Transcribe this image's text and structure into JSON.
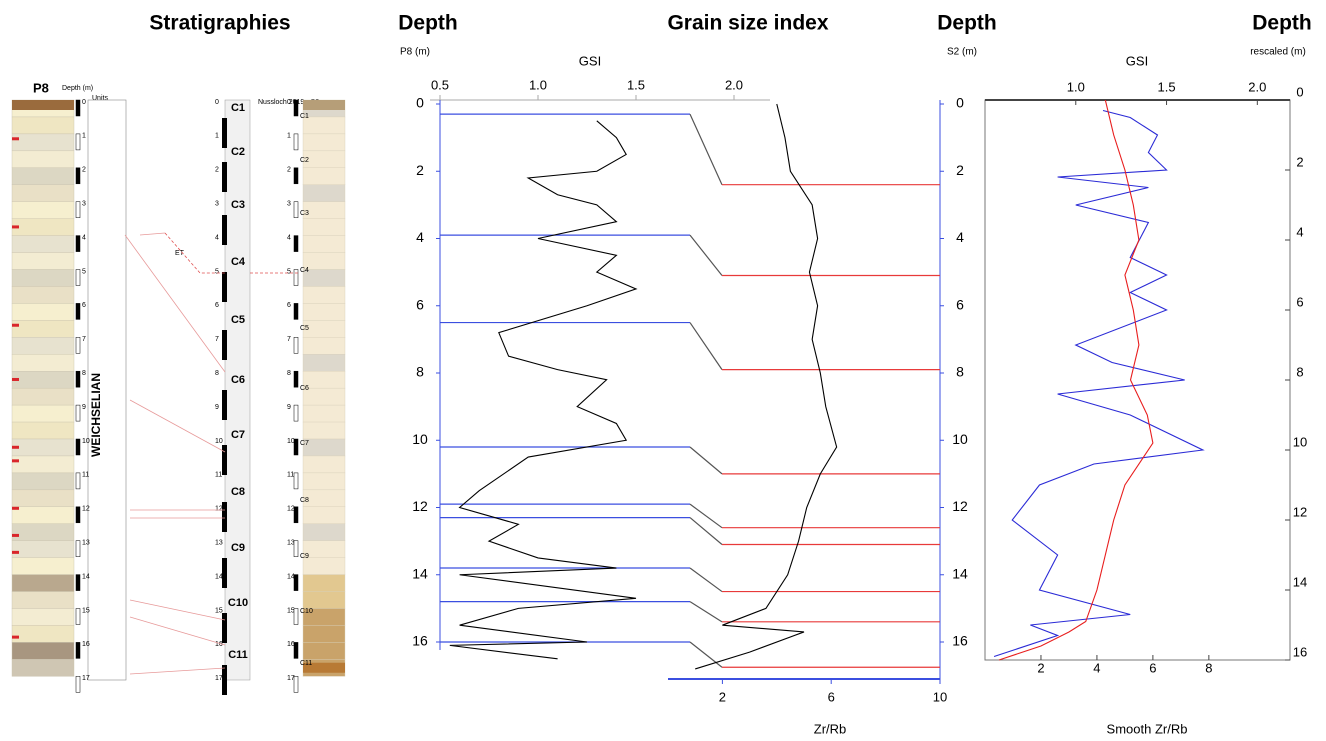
{
  "headers": [
    "Stratigraphies",
    "Depth",
    "Grain size index",
    "Depth",
    "Depth"
  ],
  "stratigraphy": {
    "p8_title": "P8",
    "depth_label": "Depth (m)",
    "units_label": "Units",
    "period": "WEICHSELIAN",
    "s2_title": "Nussloch 2019 - S2",
    "correlation_label": "ET",
    "units": [
      "C1",
      "C2",
      "C3",
      "C4",
      "C5",
      "C6",
      "C7",
      "C8",
      "C9",
      "C10",
      "C11"
    ],
    "depths": [
      0,
      1,
      2,
      3,
      4,
      5,
      6,
      7,
      8,
      9,
      10,
      11,
      12,
      13,
      14,
      15,
      16,
      17
    ]
  },
  "chart_data": [
    {
      "type": "line",
      "x_label": "GSI",
      "x2_label": "Zr/Rb",
      "y_label": "P8 (m)",
      "y2_label": "S2 (m)",
      "xlim": [
        0.5,
        2.0
      ],
      "xticks": [
        0.5,
        {
          "value": 1,
          "label": "1.0"
        },
        1.5,
        {
          "value": 2,
          "label": "2.0"
        }
      ],
      "x2lim": [
        0,
        10
      ],
      "x2ticks": [
        2,
        6,
        10
      ],
      "ylim": [
        0,
        17.1
      ],
      "yticks": [
        0,
        2,
        4,
        6,
        8,
        10,
        12,
        14,
        16
      ],
      "y2lim": [
        0,
        17.1
      ],
      "y2ticks": [
        0,
        2,
        4,
        6,
        8,
        10,
        12,
        14,
        16
      ],
      "series": [
        {
          "name": "GSI",
          "color": "#000000",
          "depth": [
            0.5,
            1,
            1.5,
            2,
            2.2,
            2.7,
            3,
            3.5,
            4,
            4.5,
            5,
            5.5,
            6,
            6.8,
            7.5,
            7.9,
            8.2,
            9,
            9.5,
            10,
            10.5,
            11.5,
            12,
            12.5,
            13,
            13.5,
            13.8,
            14,
            14.7,
            15,
            15.5,
            16,
            16.1,
            16.5
          ],
          "values": [
            1.3,
            1.4,
            1.45,
            1.3,
            0.95,
            1.1,
            1.3,
            1.4,
            1.0,
            1.4,
            1.3,
            1.5,
            1.25,
            0.8,
            0.85,
            1.1,
            1.35,
            1.2,
            1.4,
            1.45,
            0.95,
            0.7,
            0.6,
            0.9,
            0.75,
            1.0,
            1.4,
            0.6,
            1.5,
            0.9,
            0.6,
            1.25,
            0.55,
            1.1
          ]
        },
        {
          "name": "Zr/Rb",
          "color": "#000000",
          "axis": "x2",
          "depth": [
            0,
            1,
            2,
            3,
            4,
            5,
            6,
            7,
            8,
            9,
            10.2,
            11,
            12,
            13,
            14,
            15,
            15.5,
            15.7,
            16.3,
            16.8
          ],
          "values": [
            4.0,
            4.3,
            4.5,
            5.3,
            5.5,
            5.2,
            5.5,
            5.3,
            5.6,
            5.8,
            6.2,
            5.6,
            5.1,
            4.8,
            4.4,
            3.6,
            2.0,
            5.0,
            3.0,
            1.0
          ]
        }
      ],
      "tie_lines": {
        "p8_color": "#3b4fe0",
        "s2_color": "#e83a3a",
        "p8_depths": [
          0.3,
          3.9,
          6.5,
          10.2,
          11.9,
          12.3,
          13.8,
          14.8,
          16.0
        ],
        "s2_depths": [
          2.4,
          5.1,
          7.9,
          11.0,
          12.6,
          13.1,
          14.5,
          15.4,
          16.75
        ]
      }
    },
    {
      "type": "line",
      "x_label": "GSI",
      "x2_label": "Smooth Zr/Rb",
      "y_label": "rescaled (m)",
      "xlim": [
        0.5,
        2.18
      ],
      "xticks": [
        {
          "value": 1,
          "label": "1.0"
        },
        1.5,
        {
          "value": 2,
          "label": "2.0"
        }
      ],
      "x2lim": [
        0,
        10.9
      ],
      "x2ticks": [
        2,
        4,
        6,
        8
      ],
      "ylim": [
        0,
        16
      ],
      "yticks": [
        0,
        2,
        4,
        6,
        8,
        10,
        12,
        14,
        16
      ],
      "series": [
        {
          "name": "GSI",
          "color": "#2b2bd6",
          "depth": [
            0.3,
            0.5,
            1,
            1.5,
            2,
            2.2,
            2.5,
            3,
            3.5,
            4.5,
            5,
            5.5,
            6,
            7,
            7.5,
            8,
            8.4,
            9,
            10,
            10.4,
            11,
            12,
            13,
            14,
            14.7,
            15,
            15.3,
            15.9
          ],
          "values": [
            1.15,
            1.3,
            1.45,
            1.4,
            1.5,
            0.9,
            1.4,
            1.0,
            1.4,
            1.3,
            1.5,
            1.3,
            1.5,
            1.0,
            1.2,
            1.6,
            0.9,
            1.3,
            1.7,
            1.1,
            0.8,
            0.65,
            0.9,
            0.8,
            1.3,
            0.75,
            0.9,
            0.55
          ]
        },
        {
          "name": "Smooth Zr/Rb",
          "color": "#e81e1e",
          "axis": "x2",
          "depth": [
            0,
            1,
            2,
            3,
            4,
            5,
            6,
            7,
            8,
            9,
            9.8,
            11,
            12,
            13,
            14,
            14.9,
            15.2,
            15.6,
            16
          ],
          "values": [
            4.3,
            4.6,
            5.0,
            5.3,
            5.5,
            5.0,
            5.3,
            5.5,
            5.2,
            5.8,
            6.0,
            5.0,
            4.6,
            4.3,
            4.0,
            3.6,
            3.0,
            2.0,
            0.5
          ]
        }
      ]
    }
  ]
}
